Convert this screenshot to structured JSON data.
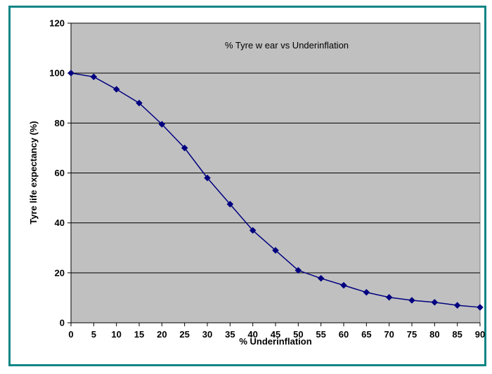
{
  "chart_data": {
    "type": "line",
    "title": "% Tyre w ear vs Underinflation",
    "xlabel": "% Underinflation",
    "ylabel": "Tyre life expectancy (%)",
    "x": [
      0,
      5,
      10,
      15,
      20,
      25,
      30,
      35,
      40,
      45,
      50,
      55,
      60,
      65,
      70,
      75,
      80,
      85,
      90
    ],
    "series": [
      {
        "values": [
          100,
          98.5,
          93.5,
          88,
          79.5,
          70,
          58,
          47.5,
          37,
          29,
          21,
          17.8,
          15,
          12.2,
          10.2,
          9,
          8.2,
          7,
          6.2
        ]
      }
    ],
    "xlim": [
      0,
      90
    ],
    "ylim": [
      0,
      120
    ],
    "x_ticks": [
      "0",
      "5",
      "10",
      "15",
      "20",
      "25",
      "30",
      "35",
      "40",
      "45",
      "50",
      "55",
      "60",
      "65",
      "70",
      "75",
      "80",
      "85",
      "90"
    ],
    "y_ticks": [
      "0",
      "20",
      "40",
      "60",
      "80",
      "100",
      "120"
    ],
    "grid": "horizontal",
    "colors": {
      "plot_background": "#c0c0c0",
      "series_line": "#000080",
      "marker": "#000080",
      "frame_border": "#0e8585"
    }
  }
}
